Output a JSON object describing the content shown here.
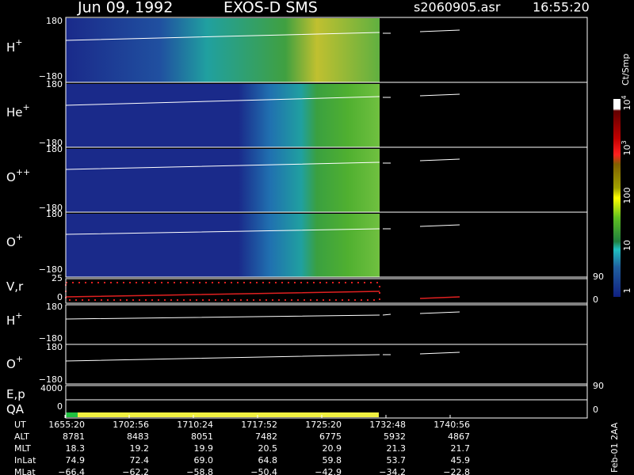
{
  "header": {
    "date": "Jun 09, 1992",
    "instrument": "EXOS-D SMS",
    "file": "s2060905.asr",
    "time": "16:55:20"
  },
  "panels": [
    {
      "label": "H",
      "sup": "+",
      "ticks": [
        "180",
        "−180"
      ]
    },
    {
      "label": "He",
      "sup": "+",
      "ticks": [
        "180",
        "−180"
      ]
    },
    {
      "label": "O",
      "sup": "++",
      "ticks": [
        "180",
        "−180"
      ]
    },
    {
      "label": "O",
      "sup": "+",
      "ticks": [
        "180",
        "−180"
      ]
    },
    {
      "label": "V,r",
      "sup": null,
      "ticks": [
        "25",
        "0"
      ],
      "right_ticks": [
        "90",
        "0"
      ]
    },
    {
      "label": "H",
      "sup": "+",
      "ticks": [
        "180",
        "−180"
      ]
    },
    {
      "label": "O",
      "sup": "+",
      "ticks": [
        "180",
        "−180"
      ]
    },
    {
      "label": "E,p",
      "sup": null,
      "ticks": [
        "4000"
      ],
      "right_ticks": [
        "90"
      ]
    },
    {
      "label": "QA",
      "sup": null,
      "ticks": [
        "0"
      ],
      "right_ticks": [
        "0"
      ]
    }
  ],
  "colorbar": {
    "title": "Ct/Smp",
    "ticks": [
      {
        "base": "10",
        "exp": "4"
      },
      {
        "base": "10",
        "exp": "3"
      },
      {
        "base": "100",
        "exp": null
      },
      {
        "base": "10",
        "exp": null
      },
      {
        "base": "1",
        "exp": null
      }
    ]
  },
  "ephemeris": [
    {
      "label": "UT",
      "values": [
        "1655:20",
        "1702:56",
        "1710:24",
        "1717:52",
        "1725:20",
        "1732:48",
        "1740:56"
      ]
    },
    {
      "label": "ALT",
      "values": [
        "8781",
        "8483",
        "8051",
        "7482",
        "6775",
        "5932",
        "4867"
      ]
    },
    {
      "label": "MLT",
      "values": [
        "18.3",
        "19.2",
        "19.9",
        "20.5",
        "20.9",
        "21.3",
        "21.7"
      ]
    },
    {
      "label": "InLat",
      "values": [
        "74.9",
        "72.4",
        "69.0",
        "64.8",
        "59.8",
        "53.7",
        "45.9"
      ]
    },
    {
      "label": "MLat",
      "values": [
        "−66.4",
        "−62.2",
        "−58.8",
        "−50.4",
        "−42.9",
        "−34.2",
        "−22.8"
      ]
    }
  ],
  "footer": "Feb-01 2AA"
}
